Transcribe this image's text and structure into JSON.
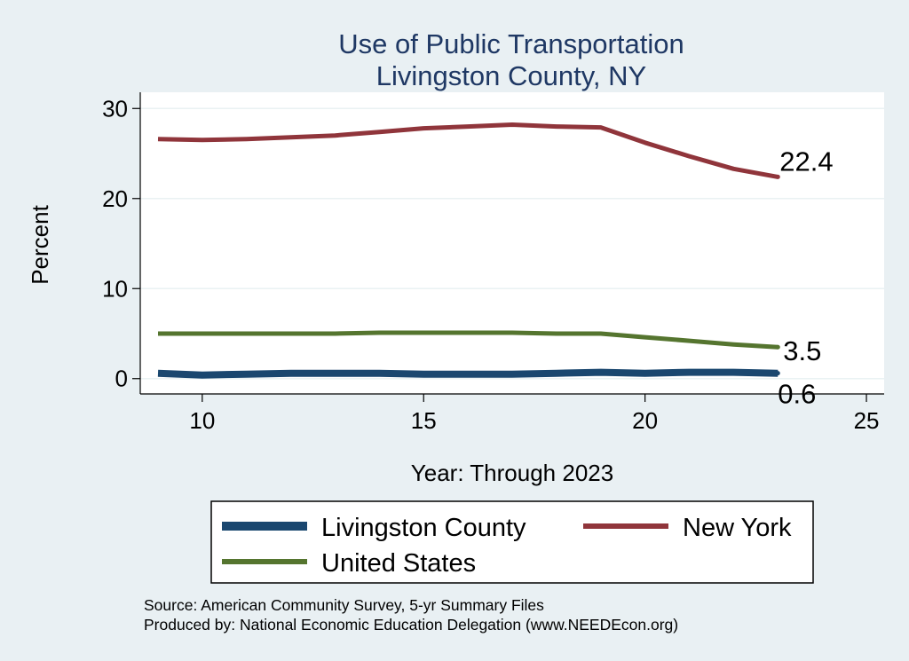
{
  "chart_data": {
    "type": "line",
    "title": [
      "Use of Public Transportation",
      "Livingston County, NY"
    ],
    "xlabel": "Year: Through 2023",
    "ylabel": "Percent",
    "xlim": [
      8.6,
      25.4
    ],
    "ylim": [
      -1.7,
      31.8
    ],
    "x_ticks": [
      10,
      15,
      20,
      25
    ],
    "y_ticks": [
      0,
      10,
      20,
      30
    ],
    "grid": "horizontal",
    "legend_position": "bottom",
    "series": [
      {
        "name": "Livingston County",
        "color": "#1a476f",
        "x": [
          9,
          10,
          11,
          12,
          13,
          14,
          15,
          16,
          17,
          18,
          19,
          20,
          21,
          22,
          23
        ],
        "y": [
          0.6,
          0.4,
          0.5,
          0.6,
          0.6,
          0.6,
          0.5,
          0.5,
          0.5,
          0.6,
          0.7,
          0.6,
          0.7,
          0.7,
          0.6
        ],
        "end_label": "0.6"
      },
      {
        "name": "New York",
        "color": "#90353b",
        "x": [
          9,
          10,
          11,
          12,
          13,
          14,
          15,
          16,
          17,
          18,
          19,
          20,
          21,
          22,
          23
        ],
        "y": [
          26.6,
          26.5,
          26.6,
          26.8,
          27.0,
          27.4,
          27.8,
          28.0,
          28.2,
          28.0,
          27.9,
          26.2,
          24.7,
          23.3,
          22.4
        ],
        "end_label": "22.4"
      },
      {
        "name": "United States",
        "color": "#55752f",
        "x": [
          9,
          10,
          11,
          12,
          13,
          14,
          15,
          16,
          17,
          18,
          19,
          20,
          21,
          22,
          23
        ],
        "y": [
          5.0,
          5.0,
          5.0,
          5.0,
          5.0,
          5.1,
          5.1,
          5.1,
          5.1,
          5.0,
          5.0,
          4.6,
          4.2,
          3.8,
          3.5
        ],
        "end_label": "3.5"
      }
    ],
    "legend": [
      {
        "name": "Livingston County",
        "color": "#1a476f"
      },
      {
        "name": "New York",
        "color": "#90353b"
      },
      {
        "name": "United States",
        "color": "#55752f"
      }
    ],
    "notes": [
      "Source: American Community Survey, 5-yr Summary Files",
      "Produced by: National Economic Education Delegation (www.NEEDEcon.org)"
    ]
  }
}
